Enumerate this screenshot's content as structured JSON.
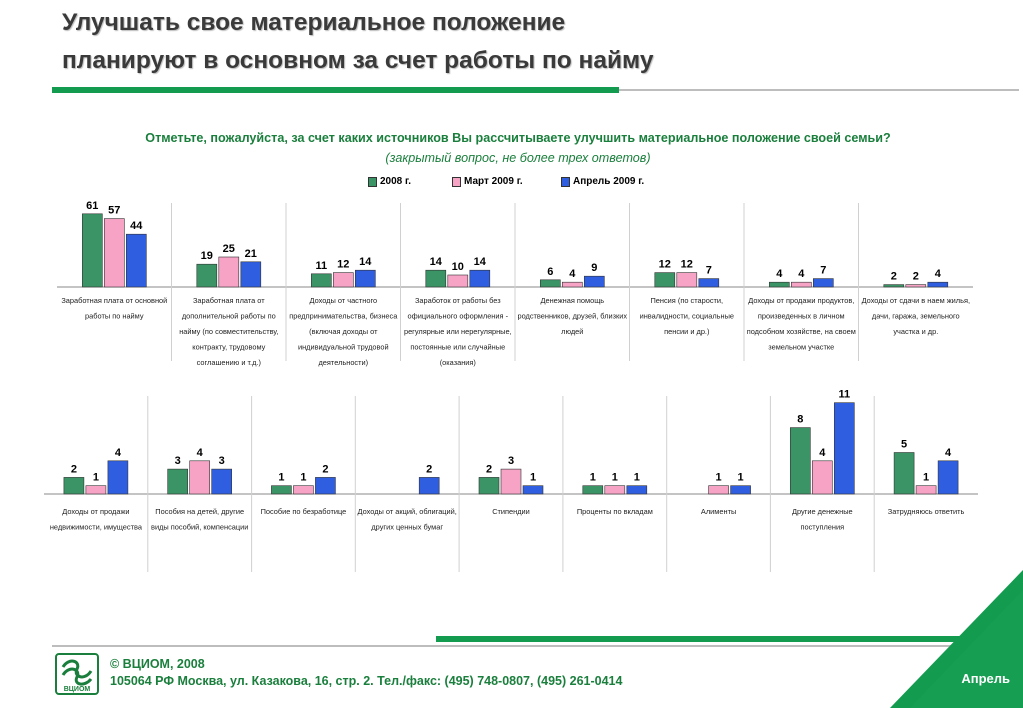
{
  "header": {
    "title_line1": "Улучшать свое материальное положение",
    "title_line2": "планируют в основном за счет работы по найму"
  },
  "question": "Отметьте, пожалуйста, за счет каких источников Вы рассчитываете улучшить материальное положение своей семьи?",
  "subquestion": "(закрытый вопрос, не более трех ответов)",
  "colors": {
    "accent": "#139b4f",
    "text_green": "#1a7f3c",
    "series_2008": "#3a9466",
    "series_mar2009": "#f6a3c6",
    "series_apr2009": "#2f5fe0"
  },
  "legend": [
    "2008 г.",
    "Март 2009 г.",
    "Апрель 2009 г."
  ],
  "chart_data": [
    {
      "type": "bar",
      "categories": [
        "Заработная плата от основной работы по найму",
        "Заработная плата от дополнительной работы по найму (по совместительству, контракту, трудовому соглашению и т.д.)",
        "Доходы от частного предпринимательства, бизнеса (включая доходы от индивидуальной трудовой деятельности)",
        "Заработок от работы без официального оформления - регулярные или нерегулярные, постоянные или случайные (оказания)",
        "Денежная помощь родственников, друзей, близких людей",
        "Пенсия (по старости, инвалидности, социальные пенсии и др.)",
        "Доходы от продажи продуктов, произведенных в личном подсобном хозяйстве, на своем земельном участке",
        "Доходы от сдачи в наем жилья, дачи, гаража, земельного участка и др."
      ],
      "category_lines": [
        [
          "Заработная плата от основной",
          "работы по найму"
        ],
        [
          "Заработная плата от",
          "дополнительной работы по",
          "найму (по совместительству,",
          "контракту, трудовому",
          "соглашению и т.д.)"
        ],
        [
          "Доходы от частного",
          "предпринимательства, бизнеса",
          "(включая доходы от",
          "индивидуальной трудовой",
          "деятельности)"
        ],
        [
          "Заработок от работы без",
          "официального оформления -",
          "регулярные или нерегулярные,",
          "постоянные или случайные",
          "(оказания)"
        ],
        [
          "Денежная помощь",
          "родственников, друзей, близких",
          "людей"
        ],
        [
          "Пенсия (по старости,",
          "инвалидности, социальные",
          "пенсии и др.)"
        ],
        [
          "Доходы от продажи продуктов,",
          "произведенных в личном",
          "подсобном хозяйстве, на своем",
          "земельном участке"
        ],
        [
          "Доходы от сдачи в наем жилья,",
          "дачи, гаража, земельного",
          "участка и др."
        ]
      ],
      "series": [
        {
          "name": "2008 г.",
          "values": [
            61,
            19,
            11,
            14,
            6,
            12,
            4,
            2
          ]
        },
        {
          "name": "Март 2009 г.",
          "values": [
            57,
            25,
            12,
            10,
            4,
            12,
            4,
            2
          ]
        },
        {
          "name": "Апрель 2009 г.",
          "values": [
            44,
            21,
            14,
            14,
            9,
            7,
            7,
            4
          ]
        }
      ]
    },
    {
      "type": "bar",
      "categories": [
        "Доходы от продажи недвижимости, имущества",
        "Пособия на детей, другие виды пособий, компенсации",
        "Пособие по безработице",
        "Доходы от акций, облигаций, других ценных бумаг",
        "Стипендии",
        "Проценты по вкладам",
        "Алименты",
        "Другие денежные поступления",
        "Затрудняюсь ответить"
      ],
      "category_lines": [
        [
          "Доходы от продажи",
          "недвижимости, имущества"
        ],
        [
          "Пособия на детей, другие",
          "виды пособий, компенсации"
        ],
        [
          "Пособие по безработице"
        ],
        [
          "Доходы от акций, облигаций,",
          "других ценных бумаг"
        ],
        [
          "Стипендии"
        ],
        [
          "Проценты по вкладам"
        ],
        [
          "Алименты"
        ],
        [
          "Другие денежные",
          "поступления"
        ],
        [
          "Затрудняюсь ответить"
        ]
      ],
      "series": [
        {
          "name": "2008 г.",
          "values": [
            2,
            3,
            1,
            null,
            2,
            1,
            null,
            8,
            5
          ]
        },
        {
          "name": "Март 2009 г.",
          "values": [
            1,
            4,
            1,
            null,
            3,
            1,
            1,
            4,
            1
          ]
        },
        {
          "name": "Апрель 2009 г.",
          "values": [
            4,
            3,
            2,
            2,
            1,
            1,
            1,
            11,
            4
          ]
        }
      ]
    }
  ],
  "footer": {
    "logo_text": "ВЦИОМ",
    "copyright": "© ВЦИОМ, 2008",
    "address": "105064 РФ Москва, ул. Казакова, 16, стр. 2.  Тел./факс: (495) 748-0807, (495) 261-0414",
    "month": "Апрель"
  }
}
